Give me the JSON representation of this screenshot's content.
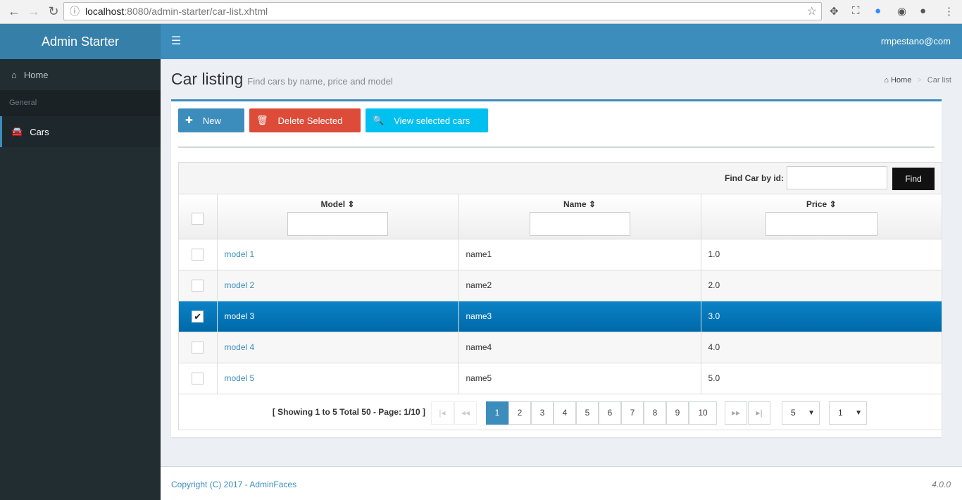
{
  "browser": {
    "url_host": "localhost",
    "url_rest": ":8080/admin-starter/car-list.xhtml"
  },
  "sidebar": {
    "logo": "Admin Starter",
    "items": [
      {
        "label": "Home"
      },
      {
        "label": "General"
      },
      {
        "label": "Cars"
      }
    ]
  },
  "topbar": {
    "user": "rmpestano@com"
  },
  "page": {
    "title": "Car listing",
    "subtitle": "Find cars by name, price and model",
    "breadcrumb": [
      "Home",
      "Car list"
    ]
  },
  "toolbar": {
    "new": "New",
    "delete": "Delete Selected",
    "view": "View selected cars",
    "colors": {
      "new": "#3c8dbc",
      "delete": "#dd4b39",
      "view": "#00c0ef"
    }
  },
  "table": {
    "find_label": "Find Car by id:",
    "find_button": "Find",
    "columns": [
      "Model",
      "Name",
      "Price"
    ],
    "rows": [
      {
        "model": "model 1",
        "name": "name1",
        "price": "1.0",
        "selected": false
      },
      {
        "model": "model 2",
        "name": "name2",
        "price": "2.0",
        "selected": false
      },
      {
        "model": "model 3",
        "name": "name3",
        "price": "3.0",
        "selected": true
      },
      {
        "model": "model 4",
        "name": "name4",
        "price": "4.0",
        "selected": false
      },
      {
        "model": "model 5",
        "name": "name5",
        "price": "5.0",
        "selected": false
      }
    ]
  },
  "pager": {
    "info": "[ Showing 1 to 5 Total 50 - Page: 1/10 ]",
    "pages": [
      "1",
      "2",
      "3",
      "4",
      "5",
      "6",
      "7",
      "8",
      "9",
      "10"
    ],
    "current": "1",
    "rows_per_page": "5",
    "jump_page": "1"
  },
  "footer": {
    "copyright": "Copyright (C) 2017 - AdminFaces",
    "version": "4.0.0"
  }
}
